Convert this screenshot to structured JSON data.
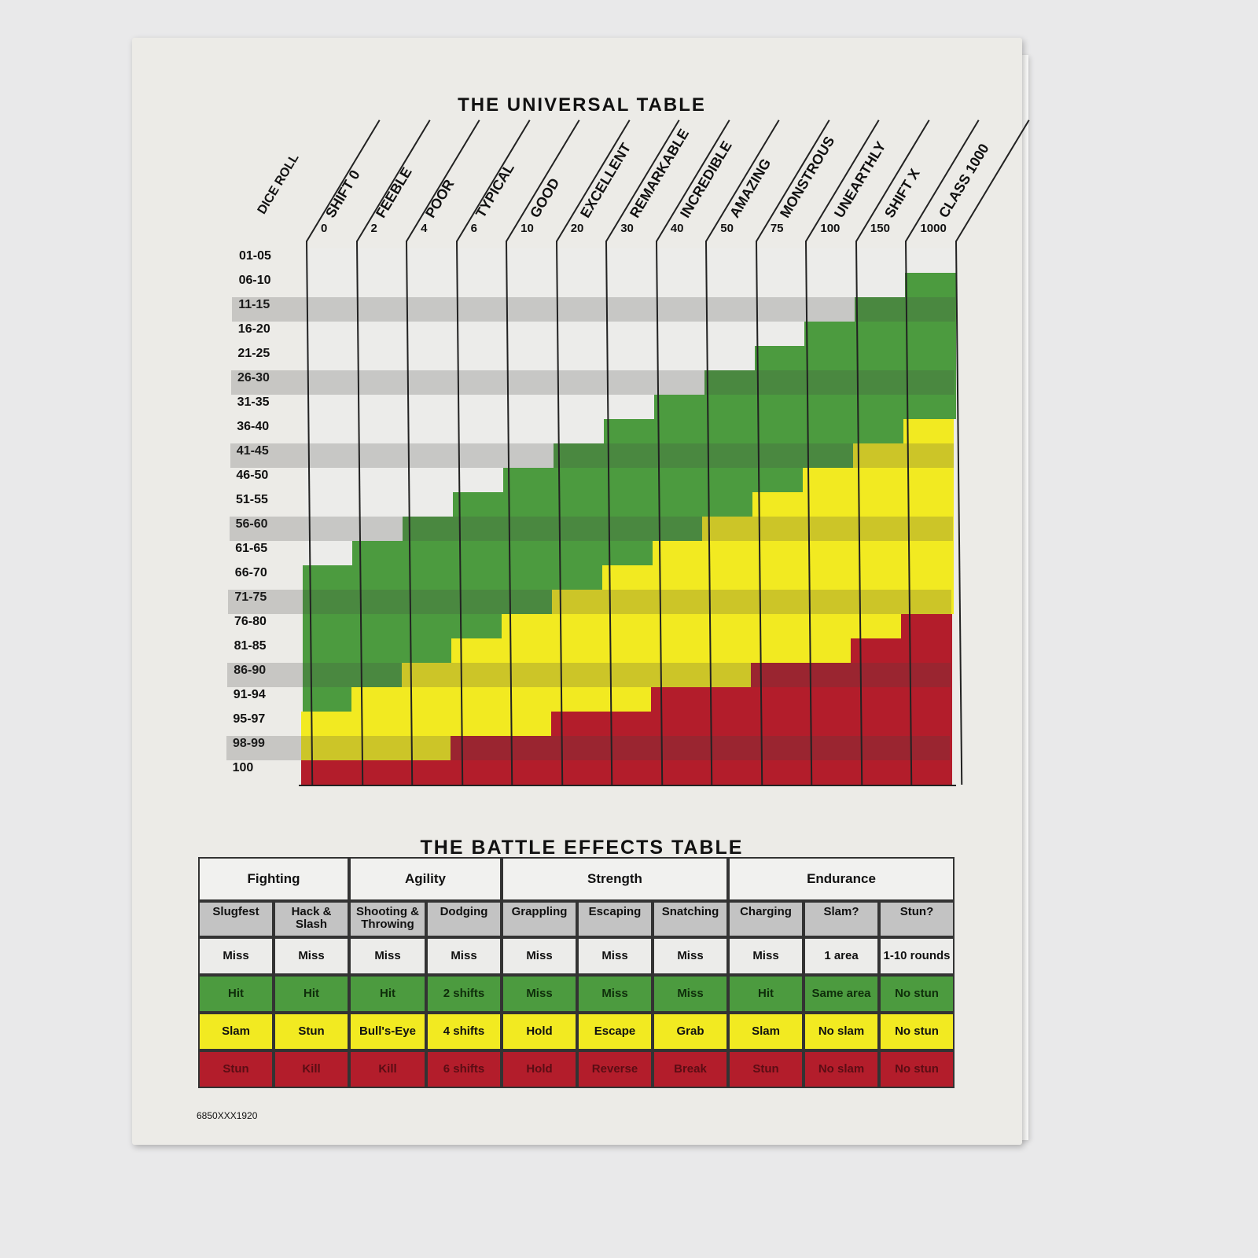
{
  "universal_table": {
    "title": "THE UNIVERSAL TABLE",
    "dice_roll_label": "DICE ROLL",
    "rows": [
      "01-05",
      "06-10",
      "11-15",
      "16-20",
      "21-25",
      "26-30",
      "31-35",
      "36-40",
      "41-45",
      "46-50",
      "51-55",
      "56-60",
      "61-65",
      "66-70",
      "71-75",
      "76-80",
      "81-85",
      "86-90",
      "91-94",
      "95-97",
      "98-99",
      "100"
    ],
    "columns": [
      {
        "name": "SHIFT 0",
        "value": "0"
      },
      {
        "name": "FEEBLE",
        "value": "2"
      },
      {
        "name": "POOR",
        "value": "4"
      },
      {
        "name": "TYPICAL",
        "value": "6"
      },
      {
        "name": "GOOD",
        "value": "10"
      },
      {
        "name": "EXCELLENT",
        "value": "20"
      },
      {
        "name": "REMARKABLE",
        "value": "30"
      },
      {
        "name": "INCREDIBLE",
        "value": "40"
      },
      {
        "name": "AMAZING",
        "value": "50"
      },
      {
        "name": "MONSTROUS",
        "value": "75"
      },
      {
        "name": "UNEARTHLY",
        "value": "100"
      },
      {
        "name": "SHIFT X",
        "value": "150"
      },
      {
        "name": "CLASS 1000",
        "value": "1000"
      }
    ],
    "results_by_column": [
      {
        "white_through": "61-65",
        "green_through": "91-94",
        "yellow_through": "98-99"
      },
      {
        "white_through": "56-60",
        "green_through": "86-90",
        "yellow_through": "98-99"
      },
      {
        "white_through": "51-55",
        "green_through": "81-85",
        "yellow_through": "98-99"
      },
      {
        "white_through": "46-50",
        "green_through": "76-80",
        "yellow_through": "95-97"
      },
      {
        "white_through": "41-45",
        "green_through": "71-75",
        "yellow_through": "95-97"
      },
      {
        "white_through": "36-40",
        "green_through": "66-70",
        "yellow_through": "91-94"
      },
      {
        "white_through": "31-35",
        "green_through": "61-65",
        "yellow_through": "91-94"
      },
      {
        "white_through": "26-30",
        "green_through": "56-60",
        "yellow_through": "86-90"
      },
      {
        "white_through": "21-25",
        "green_through": "51-55",
        "yellow_through": "86-90"
      },
      {
        "white_through": "16-20",
        "green_through": "46-50",
        "yellow_through": "81-85"
      },
      {
        "white_through": "11-15",
        "green_through": "41-45",
        "yellow_through": "81-85"
      },
      {
        "white_through": "06-10",
        "green_through": "36-40",
        "yellow_through": "76-80"
      },
      {
        "white_through": "01-05",
        "green_through": "31-35",
        "yellow_through": "71-75"
      }
    ],
    "colors": {
      "white": "#ececea",
      "green": "#4c9b3f",
      "yellow": "#f2ea21",
      "red": "#b31d2b"
    }
  },
  "battle_effects_table": {
    "title": "THE BATTLE EFFECTS TABLE",
    "groups": [
      {
        "name": "Fighting",
        "span": 2
      },
      {
        "name": "Agility",
        "span": 2
      },
      {
        "name": "Strength",
        "span": 3
      },
      {
        "name": "Endurance",
        "span": 3
      }
    ],
    "columns": [
      "Slugfest",
      "Hack & Slash",
      "Shooting & Throwing",
      "Dodging",
      "Grappling",
      "Escaping",
      "Snatching",
      "Charging",
      "Slam?",
      "Stun?"
    ],
    "rows": [
      {
        "color": "white",
        "cells": [
          "Miss",
          "Miss",
          "Miss",
          "Miss",
          "Miss",
          "Miss",
          "Miss",
          "Miss",
          "1 area",
          "1-10 rounds"
        ]
      },
      {
        "color": "green",
        "cells": [
          "Hit",
          "Hit",
          "Hit",
          "2 shifts",
          "Miss",
          "Miss",
          "Miss",
          "Hit",
          "Same area",
          "No stun"
        ]
      },
      {
        "color": "yellow",
        "cells": [
          "Slam",
          "Stun",
          "Bull's-Eye",
          "4 shifts",
          "Hold",
          "Escape",
          "Grab",
          "Slam",
          "No slam",
          "No stun"
        ]
      },
      {
        "color": "red",
        "cells": [
          "Stun",
          "Kill",
          "Kill",
          "6 shifts",
          "Hold",
          "Reverse",
          "Break",
          "Stun",
          "No slam",
          "No stun"
        ]
      }
    ],
    "colors": {
      "header": "#c3c3c3",
      "white": "#ececea",
      "green": "#4c9b3f",
      "yellow": "#f2ea21",
      "red": "#b31d2b"
    }
  },
  "product_code": "6850XXX1920"
}
